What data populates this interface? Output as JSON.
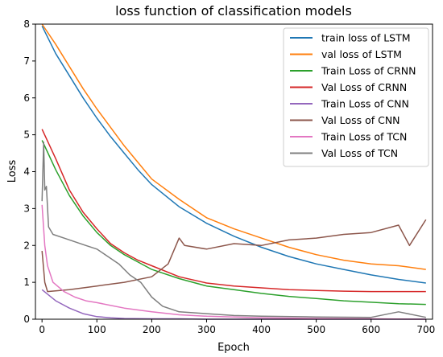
{
  "chart_data": {
    "type": "line",
    "title": "loss function of classification models",
    "xlabel": "Epoch",
    "ylabel": "Loss",
    "xlim": [
      -12,
      712
    ],
    "ylim": [
      0,
      8
    ],
    "xticks": [
      0,
      100,
      200,
      300,
      400,
      500,
      600,
      700
    ],
    "yticks": [
      0,
      1,
      2,
      3,
      4,
      5,
      6,
      7,
      8
    ],
    "grid": false,
    "legend": "top-right",
    "series": [
      {
        "name": "train loss of LSTM",
        "color": "#1f77b4",
        "x": [
          0,
          25,
          50,
          75,
          100,
          125,
          150,
          175,
          200,
          250,
          300,
          350,
          400,
          450,
          500,
          550,
          600,
          650,
          700
        ],
        "y": [
          7.95,
          7.2,
          6.6,
          6.0,
          5.45,
          4.95,
          4.5,
          4.05,
          3.65,
          3.05,
          2.6,
          2.25,
          1.95,
          1.7,
          1.5,
          1.35,
          1.2,
          1.08,
          0.98
        ]
      },
      {
        "name": "val loss of LSTM",
        "color": "#ff7f0e",
        "x": [
          0,
          25,
          50,
          75,
          100,
          125,
          150,
          175,
          200,
          250,
          300,
          350,
          400,
          450,
          500,
          550,
          600,
          650,
          700
        ],
        "y": [
          8.0,
          7.45,
          6.85,
          6.25,
          5.7,
          5.2,
          4.7,
          4.25,
          3.8,
          3.25,
          2.75,
          2.45,
          2.2,
          1.95,
          1.75,
          1.6,
          1.5,
          1.45,
          1.35
        ]
      },
      {
        "name": "Train Loss of CRNN",
        "color": "#2ca02c",
        "x": [
          0,
          25,
          50,
          75,
          100,
          125,
          150,
          175,
          200,
          250,
          300,
          350,
          400,
          450,
          500,
          550,
          600,
          650,
          700
        ],
        "y": [
          4.85,
          4.05,
          3.35,
          2.8,
          2.35,
          2.0,
          1.75,
          1.55,
          1.35,
          1.1,
          0.9,
          0.8,
          0.7,
          0.62,
          0.56,
          0.5,
          0.46,
          0.42,
          0.4
        ]
      },
      {
        "name": "Val Loss of CRNN",
        "color": "#d62728",
        "x": [
          0,
          25,
          50,
          75,
          100,
          125,
          150,
          175,
          200,
          250,
          300,
          350,
          400,
          450,
          500,
          550,
          600,
          650,
          700
        ],
        "y": [
          5.15,
          4.35,
          3.5,
          2.9,
          2.45,
          2.05,
          1.8,
          1.6,
          1.45,
          1.15,
          0.98,
          0.9,
          0.85,
          0.8,
          0.78,
          0.76,
          0.75,
          0.75,
          0.75
        ]
      },
      {
        "name": "Train Loss of CNN",
        "color": "#9467bd",
        "x": [
          0,
          25,
          50,
          75,
          100,
          125,
          150,
          200,
          250,
          300,
          400,
          500,
          600,
          700
        ],
        "y": [
          0.8,
          0.5,
          0.3,
          0.15,
          0.07,
          0.04,
          0.02,
          0.01,
          0.01,
          0.0,
          0.0,
          0.0,
          0.0,
          0.0
        ]
      },
      {
        "name": "Val Loss of CNN",
        "color": "#8c564b",
        "x": [
          0,
          5,
          10,
          50,
          100,
          150,
          200,
          230,
          250,
          260,
          300,
          350,
          400,
          450,
          500,
          550,
          600,
          650,
          670,
          700
        ],
        "y": [
          1.85,
          1.0,
          0.75,
          0.8,
          0.9,
          1.0,
          1.15,
          1.5,
          2.2,
          2.0,
          1.9,
          2.05,
          2.0,
          2.15,
          2.2,
          2.3,
          2.35,
          2.55,
          2.0,
          2.7
        ]
      },
      {
        "name": "Train Loss of TCN",
        "color": "#e377c2",
        "x": [
          0,
          5,
          10,
          20,
          40,
          60,
          80,
          100,
          150,
          200,
          250,
          300,
          400,
          500,
          600,
          700
        ],
        "y": [
          3.1,
          2.0,
          1.45,
          1.0,
          0.75,
          0.6,
          0.5,
          0.45,
          0.3,
          0.2,
          0.12,
          0.08,
          0.04,
          0.02,
          0.01,
          0.0
        ]
      },
      {
        "name": "Val Loss of TCN",
        "color": "#7f7f7f",
        "x": [
          0,
          3,
          5,
          8,
          12,
          20,
          40,
          60,
          80,
          100,
          120,
          140,
          160,
          180,
          200,
          220,
          250,
          300,
          350,
          400,
          500,
          600,
          650,
          700
        ],
        "y": [
          3.2,
          4.8,
          3.5,
          3.6,
          2.5,
          2.3,
          2.2,
          2.1,
          2.0,
          1.9,
          1.7,
          1.5,
          1.2,
          1.0,
          0.6,
          0.35,
          0.2,
          0.15,
          0.1,
          0.08,
          0.06,
          0.05,
          0.2,
          0.05
        ]
      }
    ]
  }
}
